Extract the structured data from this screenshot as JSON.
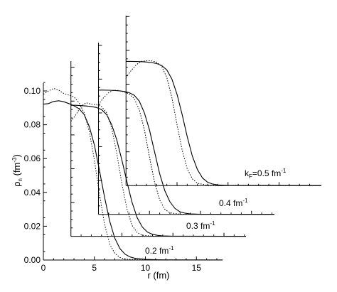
{
  "chart_data": {
    "type": "line",
    "xlabel": "r (fm)",
    "ylabel": "ρ n (fm-3)",
    "ylabel_parts": {
      "rho": "ρ",
      "sub": "n",
      "open": " (fm",
      "sup": "-3",
      "close": ")"
    },
    "xlim": [
      0,
      17.5
    ],
    "ylim": [
      0,
      0.11
    ],
    "x_ticks": [
      0,
      5,
      10,
      15
    ],
    "x_tick_labels": [
      "0",
      "5",
      "10",
      "15"
    ],
    "y_ticks": [
      0,
      0.02,
      0.04,
      0.06,
      0.08,
      0.1
    ],
    "y_tick_labels": [
      "0.00",
      "0.02",
      "0.04",
      "0.06",
      "0.08",
      "0.10"
    ],
    "panel_offsets_r": [
      0,
      2.7,
      5.4,
      8.1
    ],
    "panel_offsets_rho": [
      0,
      0.014,
      0.027,
      0.044
    ],
    "series": [
      {
        "label_parts": {
          "main": "0.2 fm",
          "sup": "-1"
        },
        "solid": [
          [
            0,
            0.0922
          ],
          [
            0.5,
            0.0925
          ],
          [
            1,
            0.0938
          ],
          [
            1.5,
            0.0942
          ],
          [
            2,
            0.0936
          ],
          [
            2.5,
            0.0925
          ],
          [
            3,
            0.0912
          ],
          [
            3.5,
            0.0895
          ],
          [
            4,
            0.086
          ],
          [
            4.5,
            0.079
          ],
          [
            5,
            0.068
          ],
          [
            5.5,
            0.053
          ],
          [
            6,
            0.037
          ],
          [
            6.5,
            0.023
          ],
          [
            7,
            0.013
          ],
          [
            7.5,
            0.0068
          ],
          [
            8,
            0.0035
          ],
          [
            8.5,
            0.0018
          ],
          [
            9,
            0.001
          ],
          [
            10,
            0.0004
          ],
          [
            11,
            0.0002
          ],
          [
            12,
            0.0001
          ]
        ],
        "dotted": [
          [
            0,
            0.098
          ],
          [
            0.5,
            0.1
          ],
          [
            1,
            0.1015
          ],
          [
            1.5,
            0.1005
          ],
          [
            2,
            0.0985
          ],
          [
            2.5,
            0.0975
          ],
          [
            3,
            0.0965
          ],
          [
            3.5,
            0.093
          ],
          [
            4,
            0.087
          ],
          [
            4.5,
            0.076
          ],
          [
            5,
            0.059
          ],
          [
            5.5,
            0.039
          ],
          [
            6,
            0.021
          ],
          [
            6.5,
            0.0095
          ],
          [
            7,
            0.004
          ],
          [
            7.5,
            0.0015
          ],
          [
            8,
            0.0006
          ],
          [
            9,
            0.0002
          ],
          [
            10,
            0.0001
          ]
        ]
      },
      {
        "label_parts": {
          "main": "0.3 fm",
          "sup": "-1"
        },
        "solid": [
          [
            0,
            0.0775
          ],
          [
            0.5,
            0.0775
          ],
          [
            1,
            0.0773
          ],
          [
            1.5,
            0.0771
          ],
          [
            2,
            0.0768
          ],
          [
            2.5,
            0.0762
          ],
          [
            3,
            0.075
          ],
          [
            3.5,
            0.072
          ],
          [
            4,
            0.066
          ],
          [
            4.5,
            0.057
          ],
          [
            5,
            0.045
          ],
          [
            5.5,
            0.032
          ],
          [
            6,
            0.02
          ],
          [
            6.5,
            0.011
          ],
          [
            7,
            0.0055
          ],
          [
            7.5,
            0.0025
          ],
          [
            8,
            0.0012
          ],
          [
            8.5,
            0.0006
          ],
          [
            9,
            0.0003
          ],
          [
            10,
            0.0001
          ]
        ],
        "dotted": [
          [
            0,
            0.068
          ],
          [
            0.5,
            0.072
          ],
          [
            1,
            0.077
          ],
          [
            1.5,
            0.079
          ],
          [
            2,
            0.0782
          ],
          [
            2.5,
            0.0778
          ],
          [
            3,
            0.0768
          ],
          [
            3.5,
            0.073
          ],
          [
            4,
            0.064
          ],
          [
            4.5,
            0.049
          ],
          [
            5,
            0.031
          ],
          [
            5.5,
            0.016
          ],
          [
            6,
            0.0065
          ],
          [
            6.5,
            0.0022
          ],
          [
            7,
            0.0007
          ],
          [
            8,
            0.0001
          ]
        ]
      },
      {
        "label_parts": {
          "main": "0.4 fm",
          "sup": "-1"
        },
        "solid": [
          [
            0,
            0.0735
          ],
          [
            0.5,
            0.0735
          ],
          [
            1,
            0.0734
          ],
          [
            1.5,
            0.0733
          ],
          [
            2,
            0.0731
          ],
          [
            2.5,
            0.0727
          ],
          [
            3,
            0.072
          ],
          [
            3.5,
            0.0705
          ],
          [
            4,
            0.067
          ],
          [
            4.5,
            0.06
          ],
          [
            5,
            0.05
          ],
          [
            5.5,
            0.037
          ],
          [
            6,
            0.024
          ],
          [
            6.5,
            0.014
          ],
          [
            7,
            0.0075
          ],
          [
            7.5,
            0.0035
          ],
          [
            8,
            0.0015
          ],
          [
            8.5,
            0.0007
          ],
          [
            9,
            0.0003
          ],
          [
            10,
            0.0001
          ]
        ],
        "dotted": [
          [
            0,
            0.065
          ],
          [
            0.5,
            0.069
          ],
          [
            1,
            0.072
          ],
          [
            1.5,
            0.0735
          ],
          [
            2,
            0.0732
          ],
          [
            2.5,
            0.0725
          ],
          [
            3,
            0.0712
          ],
          [
            3.5,
            0.0685
          ],
          [
            4,
            0.062
          ],
          [
            4.5,
            0.05
          ],
          [
            5,
            0.034
          ],
          [
            5.5,
            0.019
          ],
          [
            6,
            0.0085
          ],
          [
            6.5,
            0.003
          ],
          [
            7,
            0.001
          ],
          [
            8,
            0.0001
          ]
        ]
      },
      {
        "label_parts": {
          "main": "k",
          "sub": "F",
          "eq": "=0.5 fm",
          "sup": "-1"
        },
        "solid": [
          [
            0,
            0.0735
          ],
          [
            0.5,
            0.0735
          ],
          [
            1,
            0.0734
          ],
          [
            1.5,
            0.0733
          ],
          [
            2,
            0.0731
          ],
          [
            2.5,
            0.0728
          ],
          [
            3,
            0.0722
          ],
          [
            3.5,
            0.071
          ],
          [
            4,
            0.0685
          ],
          [
            4.5,
            0.063
          ],
          [
            5,
            0.054
          ],
          [
            5.5,
            0.042
          ],
          [
            6,
            0.029
          ],
          [
            6.5,
            0.0175
          ],
          [
            7,
            0.0095
          ],
          [
            7.5,
            0.0045
          ],
          [
            8,
            0.002
          ],
          [
            8.5,
            0.0009
          ],
          [
            9,
            0.0004
          ],
          [
            10,
            0.0001
          ]
        ],
        "dotted": [
          [
            0,
            0.064
          ],
          [
            0.5,
            0.068
          ],
          [
            1,
            0.0715
          ],
          [
            1.5,
            0.0735
          ],
          [
            2,
            0.0738
          ],
          [
            2.5,
            0.0738
          ],
          [
            3,
            0.073
          ],
          [
            3.5,
            0.0705
          ],
          [
            4,
            0.064
          ],
          [
            4.5,
            0.052
          ],
          [
            5,
            0.036
          ],
          [
            5.5,
            0.021
          ],
          [
            6,
            0.01
          ],
          [
            6.5,
            0.004
          ],
          [
            7,
            0.0014
          ],
          [
            8,
            0.0002
          ]
        ]
      }
    ]
  }
}
